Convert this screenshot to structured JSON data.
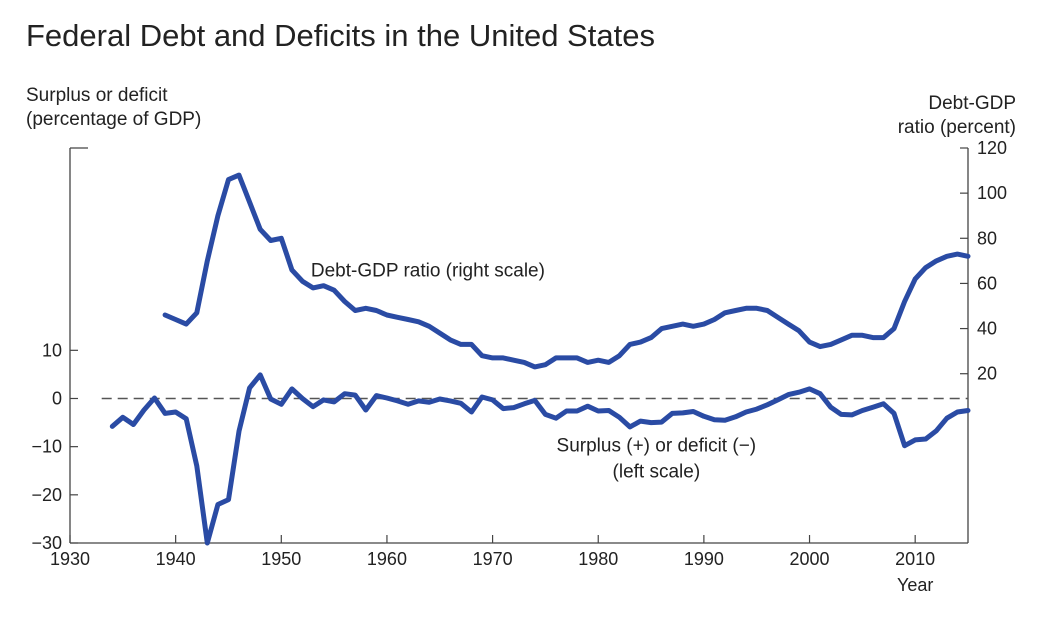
{
  "chart_data": {
    "title": "Federal Debt and Deficits in the United States",
    "type": "line",
    "left_axis": {
      "title_lines": [
        "Surplus or deficit",
        "(percentage of GDP)"
      ],
      "ylim": [
        -30,
        52
      ],
      "ticks": [
        10,
        0,
        -10,
        -20,
        -30
      ],
      "tick_labels": [
        "10",
        "0",
        "−10",
        "−20",
        "−30"
      ]
    },
    "right_axis": {
      "title_lines": [
        "Debt-GDP",
        "ratio (percent)"
      ],
      "ylim": [
        -55,
        120
      ],
      "ticks": [
        120,
        100,
        80,
        60,
        40,
        20
      ],
      "tick_labels": [
        "120",
        "100",
        "80",
        "60",
        "40",
        "20"
      ]
    },
    "x_axis": {
      "label": "Year",
      "xlim": [
        1930,
        2015
      ],
      "ticks": [
        1930,
        1940,
        1950,
        1960,
        1970,
        1980,
        1990,
        2000,
        2010
      ],
      "tick_labels": [
        "1930",
        "1940",
        "1950",
        "1960",
        "1970",
        "1980",
        "1990",
        "2000",
        "2010"
      ]
    },
    "reference_line": {
      "y": 0,
      "axis": "left",
      "style": "dashed"
    },
    "annotations": [
      {
        "lines": [
          "Debt-GDP ratio (right scale)"
        ],
        "anchor_year": 1952.8,
        "anchor_right": 63,
        "align": "start"
      },
      {
        "lines": [
          "Surplus (+) or deficit (−)",
          "(left scale)"
        ],
        "anchor_year": 1985.5,
        "anchor_left": -11,
        "align": "middle"
      }
    ],
    "series": [
      {
        "name": "Debt-GDP ratio (right scale)",
        "axis": "right",
        "color": "#2a4ba4",
        "x": [
          1939,
          1940,
          1941,
          1942,
          1943,
          1944,
          1945,
          1946,
          1947,
          1948,
          1949,
          1950,
          1951,
          1952,
          1953,
          1954,
          1955,
          1956,
          1957,
          1958,
          1959,
          1960,
          1961,
          1962,
          1963,
          1964,
          1965,
          1966,
          1967,
          1968,
          1969,
          1970,
          1971,
          1972,
          1973,
          1974,
          1975,
          1976,
          1977,
          1978,
          1979,
          1980,
          1981,
          1982,
          1983,
          1984,
          1985,
          1986,
          1987,
          1988,
          1989,
          1990,
          1991,
          1992,
          1993,
          1994,
          1995,
          1996,
          1997,
          1998,
          1999,
          2000,
          2001,
          2002,
          2003,
          2004,
          2005,
          2006,
          2007,
          2008,
          2009,
          2010,
          2011,
          2012,
          2013,
          2014,
          2015
        ],
        "y": [
          46,
          44,
          42,
          47,
          70,
          90,
          106,
          108,
          96,
          84,
          79,
          80,
          66,
          61,
          58,
          59,
          57,
          52,
          48,
          49,
          48,
          46,
          45,
          44,
          43,
          41,
          38,
          35,
          33,
          33,
          28,
          27,
          27,
          26,
          25,
          23,
          24,
          27,
          27,
          27,
          25,
          26,
          25,
          28,
          33,
          34,
          36,
          40,
          41,
          42,
          41,
          42,
          44,
          47,
          48,
          49,
          49,
          48,
          45,
          42,
          39,
          34,
          32,
          33,
          35,
          37,
          37,
          36,
          36,
          40,
          52,
          62,
          67,
          70,
          72,
          73,
          72
        ]
      },
      {
        "name": "Surplus (+) or deficit (−) (left scale)",
        "axis": "left",
        "color": "#2a4ba4",
        "x": [
          1934,
          1935,
          1936,
          1937,
          1938,
          1939,
          1940,
          1941,
          1942,
          1943,
          1944,
          1945,
          1946,
          1947,
          1948,
          1949,
          1950,
          1951,
          1952,
          1953,
          1954,
          1955,
          1956,
          1957,
          1958,
          1959,
          1960,
          1961,
          1962,
          1963,
          1964,
          1965,
          1966,
          1967,
          1968,
          1969,
          1970,
          1971,
          1972,
          1973,
          1974,
          1975,
          1976,
          1977,
          1978,
          1979,
          1980,
          1981,
          1982,
          1983,
          1984,
          1985,
          1986,
          1987,
          1988,
          1989,
          1990,
          1991,
          1992,
          1993,
          1994,
          1995,
          1996,
          1997,
          1998,
          1999,
          2000,
          2001,
          2002,
          2003,
          2004,
          2005,
          2006,
          2007,
          2008,
          2009,
          2010,
          2011,
          2012,
          2013,
          2014,
          2015
        ],
        "y": [
          -5.8,
          -3.9,
          -5.4,
          -2.4,
          0.1,
          -3.1,
          -2.8,
          -4.2,
          -14,
          -30,
          -22,
          -21,
          -6.8,
          2.2,
          4.9,
          -0.1,
          -1.2,
          2.0,
          0,
          -1.7,
          -0.3,
          -0.7,
          1.0,
          0.7,
          -2.4,
          0.6,
          0.1,
          -0.5,
          -1.2,
          -0.5,
          -0.8,
          -0.1,
          -0.5,
          -1.0,
          -2.8,
          0.3,
          -0.3,
          -2.1,
          -1.9,
          -1.1,
          -0.4,
          -3.3,
          -4.1,
          -2.6,
          -2.6,
          -1.6,
          -2.6,
          -2.5,
          -3.9,
          -5.9,
          -4.7,
          -5.0,
          -4.9,
          -3.1,
          -3.0,
          -2.7,
          -3.7,
          -4.4,
          -4.5,
          -3.8,
          -2.8,
          -2.2,
          -1.3,
          -0.3,
          0.8,
          1.3,
          2.0,
          1.0,
          -1.8,
          -3.3,
          -3.4,
          -2.5,
          -1.8,
          -1.1,
          -3.1,
          -9.8,
          -8.6,
          -8.4,
          -6.7,
          -4.1,
          -2.8,
          -2.5
        ]
      }
    ]
  }
}
